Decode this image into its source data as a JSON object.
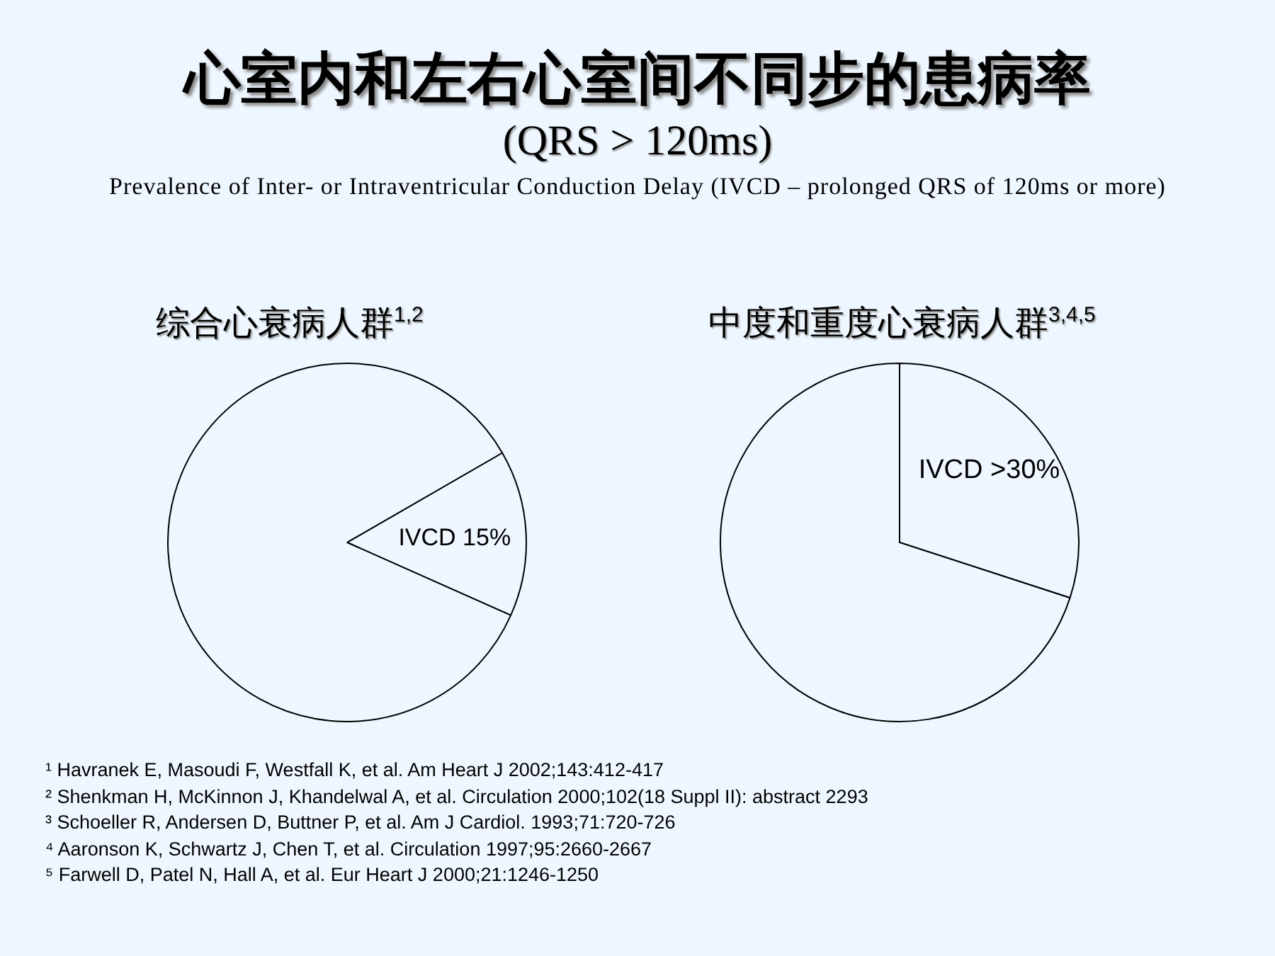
{
  "chart_data": [
    {
      "type": "other",
      "title": "心室内和左右心室间不同步的患病率",
      "subtitle": "(QRS > 120ms)",
      "annotations": [
        "Prevalence of Inter- or Intraventricular Conduction Delay (IVCD – prolonged QRS of 120ms or more)"
      ]
    },
    {
      "type": "pie",
      "title": "综合心衰病人群$^{1,2}$",
      "categories": [
        "IVCD",
        null
      ],
      "values": [
        15,
        85
      ],
      "colors": [
        "#eef6ff",
        "#eef6ff"
      ],
      "value_labels": [
        "15%",
        null
      ],
      "legend": false
    },
    {
      "type": "pie",
      "title": "中度和重度心衰病人群$^{3,4,5}$",
      "categories": [
        "IVCD",
        null
      ],
      "values": [
        30,
        70
      ],
      "colors": [
        "#eef6ff",
        "#eef6ff"
      ],
      "value_labels": [
        ">30%",
        null
      ],
      "legend": false
    },
    {
      "type": "other",
      "annotations": [
        "¹ Havranek E, Masoudi F, Westfall K, et al. Am Heart J 2002;143:412-417",
        "² Shenkman H, McKinnon J, Khandelwal A, et al. Circulation 2000;102(18 Suppl II): abstract 2293",
        "³ Schoeller R, Andersen D, Buttner P, et al. Am J Cardiol. 1993;71:720-726",
        "⁴ Aaronson K, Schwartz J, Chen T, et al. Circulation 1997;95:2660-2667",
        "⁵ Farwell D, Patel N, Hall A, et al. Eur Heart J 2000;21:1246-1250"
      ]
    }
  ]
}
